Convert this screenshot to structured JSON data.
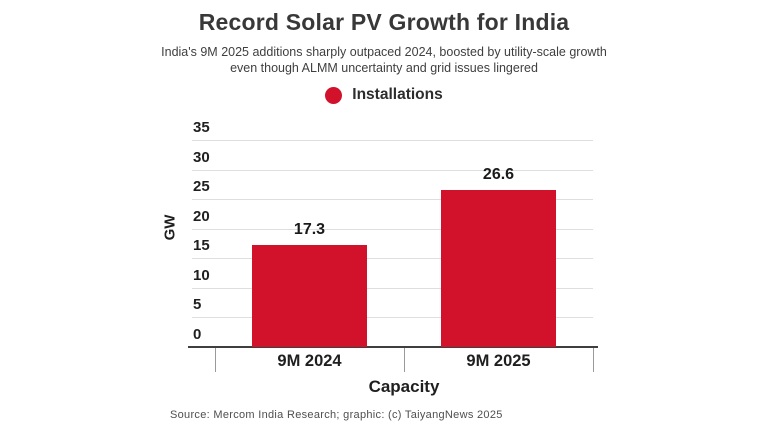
{
  "header": {
    "title": "Record Solar PV Growth for India",
    "subtitle": "India's 9M 2025 additions sharply outpaced 2024, boosted by utility-scale growth even though ALMM uncertainty and grid issues lingered"
  },
  "legend": {
    "label": "Installations",
    "marker_color": "#d2122b"
  },
  "chart_data": {
    "type": "bar",
    "title": "Record Solar PV Growth for India",
    "series_name": "Installations",
    "categories": [
      "9M 2024",
      "9M 2025"
    ],
    "values": [
      17.3,
      26.6
    ],
    "data_labels": [
      "17.3",
      "26.6"
    ],
    "xlabel": "Capacity",
    "ylabel": "GW",
    "ylim": [
      0,
      35
    ],
    "yticks": [
      0,
      5,
      10,
      15,
      20,
      25,
      30,
      35
    ],
    "grid": true,
    "bar_color": "#d2122b",
    "legend_position": "top-center"
  },
  "footer": {
    "source": "Source: Mercom India Research; graphic: (c) TaiyangNews 2025"
  },
  "colors": {
    "accent_red": "#d2122b",
    "text_dark": "#1f1f1f",
    "title": "#383838",
    "gridline": "#dedede",
    "axis": "#3f3f3f",
    "source_text": "#4f4f4f"
  }
}
